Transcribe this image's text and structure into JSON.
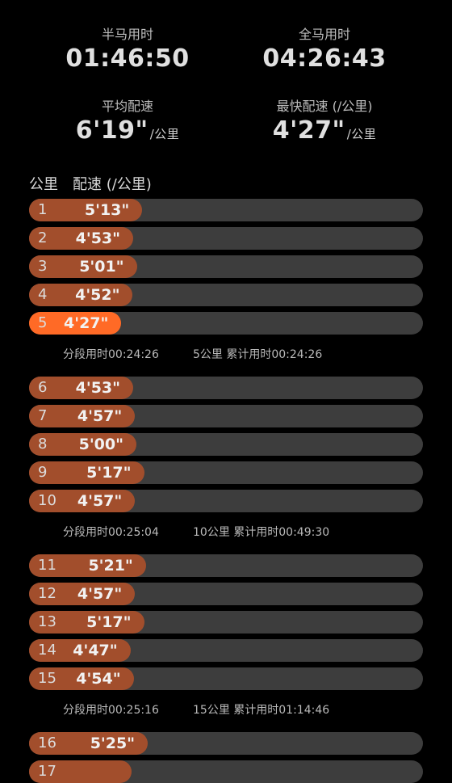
{
  "stats": {
    "half_label": "半马用时",
    "half_value": "01:46:50",
    "full_label": "全马用时",
    "full_value": "04:26:43",
    "avg_label": "平均配速",
    "avg_value": "6'19\"",
    "avg_unit": "/公里",
    "fast_label": "最快配速 (/公里)",
    "fast_value": "4'27\"",
    "fast_unit": "/公里"
  },
  "list": {
    "col_km": "公里",
    "col_pace": "配速 (/公里)"
  },
  "colors": {
    "bar": "#a24e2c",
    "bar_fastest": "#ff6a26",
    "track": "#3d3d3d",
    "background": "#000000"
  },
  "rows": [
    {
      "km": "1",
      "pace": "5'13\"",
      "seconds": 313,
      "fastest": false
    },
    {
      "km": "2",
      "pace": "4'53\"",
      "seconds": 293,
      "fastest": false
    },
    {
      "km": "3",
      "pace": "5'01\"",
      "seconds": 301,
      "fastest": false
    },
    {
      "km": "4",
      "pace": "4'52\"",
      "seconds": 292,
      "fastest": false
    },
    {
      "km": "5",
      "pace": "4'27\"",
      "seconds": 267,
      "fastest": true
    },
    {
      "km": "6",
      "pace": "4'53\"",
      "seconds": 293,
      "fastest": false
    },
    {
      "km": "7",
      "pace": "4'57\"",
      "seconds": 297,
      "fastest": false
    },
    {
      "km": "8",
      "pace": "5'00\"",
      "seconds": 300,
      "fastest": false
    },
    {
      "km": "9",
      "pace": "5'17\"",
      "seconds": 317,
      "fastest": false
    },
    {
      "km": "10",
      "pace": "4'57\"",
      "seconds": 297,
      "fastest": false
    },
    {
      "km": "11",
      "pace": "5'21\"",
      "seconds": 321,
      "fastest": false
    },
    {
      "km": "12",
      "pace": "4'57\"",
      "seconds": 297,
      "fastest": false
    },
    {
      "km": "13",
      "pace": "5'17\"",
      "seconds": 317,
      "fastest": false
    },
    {
      "km": "14",
      "pace": "4'47\"",
      "seconds": 287,
      "fastest": false
    },
    {
      "km": "15",
      "pace": "4'54\"",
      "seconds": 294,
      "fastest": false
    },
    {
      "km": "16",
      "pace": "5'25\"",
      "seconds": 325,
      "fastest": false
    },
    {
      "km": "17",
      "pace": "",
      "seconds": 290,
      "fastest": false
    }
  ],
  "splits": [
    {
      "after_km": 5,
      "segment": "分段用时00:24:26",
      "cumulative": "5公里 累计用时00:24:26"
    },
    {
      "after_km": 10,
      "segment": "分段用时00:25:04",
      "cumulative": "10公里 累计用时00:49:30"
    },
    {
      "after_km": 15,
      "segment": "分段用时00:25:16",
      "cumulative": "15公里 累计用时01:14:46"
    }
  ]
}
